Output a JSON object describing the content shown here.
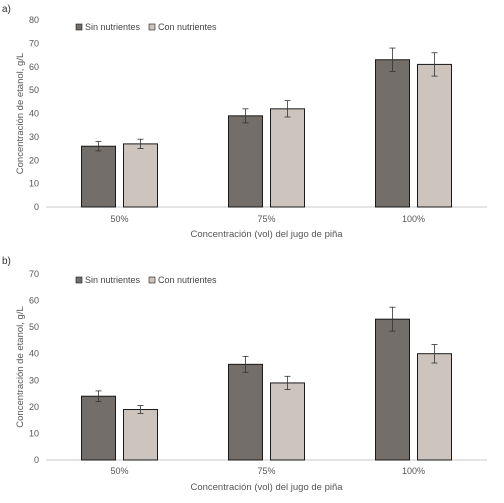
{
  "chart_data": [
    {
      "type": "bar",
      "panel_label": "a)",
      "categories": [
        "50%",
        "75%",
        "100%"
      ],
      "series": [
        {
          "name": "Sin nutrientes",
          "values": [
            26,
            39,
            63
          ],
          "errors": [
            2,
            3,
            5
          ],
          "color": "#736E69"
        },
        {
          "name": "Con nutrientes",
          "values": [
            27,
            42,
            61
          ],
          "errors": [
            2,
            3.5,
            5
          ],
          "color": "#CCC4BD"
        }
      ],
      "xlabel": "Concentración (vol) del jugo de piña",
      "ylabel": "Concentración de etanol, g/L",
      "ylim": [
        0,
        80
      ],
      "yticks": [
        0,
        10,
        20,
        30,
        40,
        50,
        60,
        70,
        80
      ],
      "grid": false,
      "legend_position": "top-left"
    },
    {
      "type": "bar",
      "panel_label": "b)",
      "categories": [
        "50%",
        "75%",
        "100%"
      ],
      "series": [
        {
          "name": "Sin nutrientes",
          "values": [
            24,
            36,
            53
          ],
          "errors": [
            2,
            3,
            4.5
          ],
          "color": "#736E69"
        },
        {
          "name": "Con nutrientes",
          "values": [
            19,
            29,
            40
          ],
          "errors": [
            1.5,
            2.5,
            3.5
          ],
          "color": "#CCC4BD"
        }
      ],
      "xlabel": "Concentración (vol) del jugo de piña",
      "ylabel": "Concentración de etanol, g/L",
      "ylim": [
        0,
        70
      ],
      "yticks": [
        0,
        10,
        20,
        30,
        40,
        50,
        60,
        70
      ],
      "grid": false,
      "legend_position": "top-left"
    }
  ]
}
